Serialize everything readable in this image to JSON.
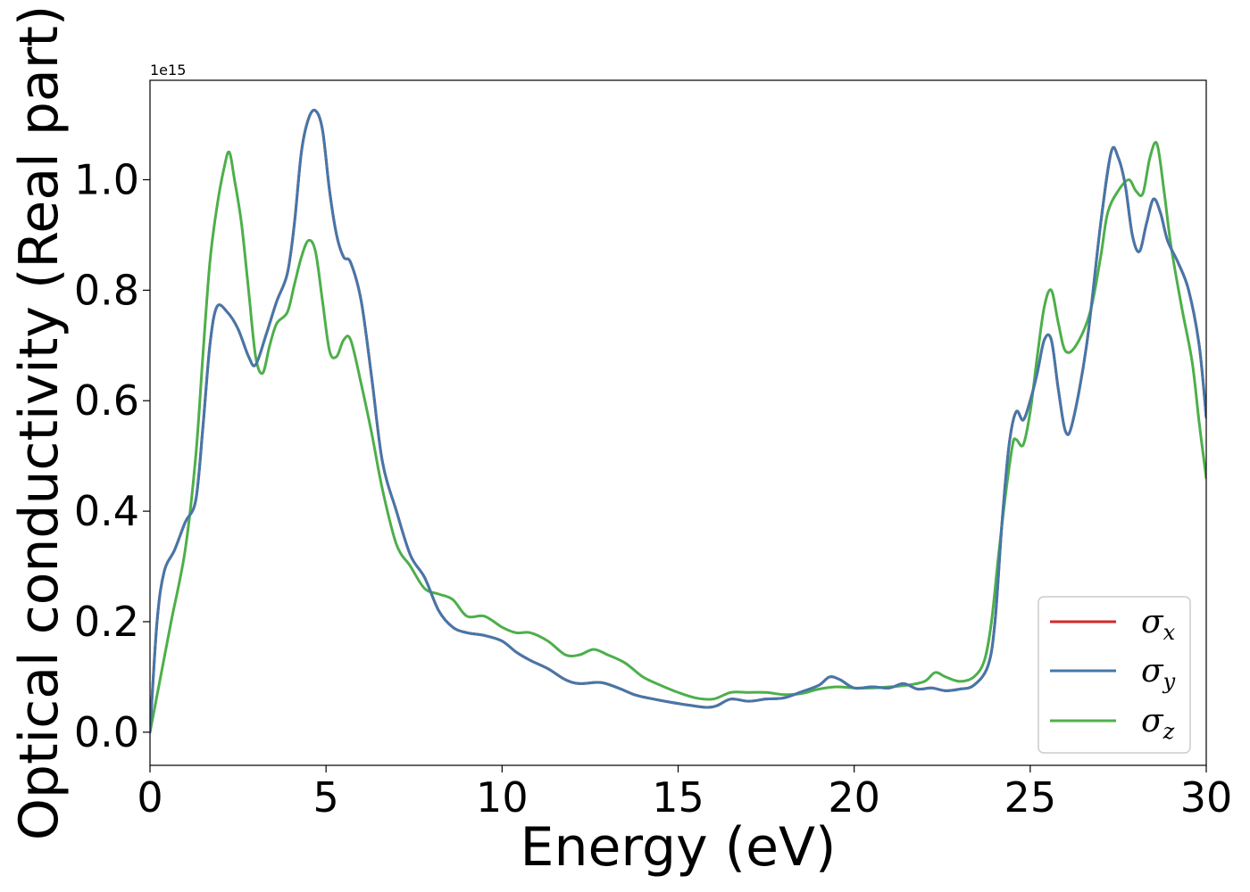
{
  "chart_data": {
    "type": "line",
    "xlabel": "Energy (eV)",
    "ylabel": "Optical conductivity (Real part)",
    "y_offset_label": "1e15",
    "xlim": [
      0,
      30
    ],
    "ylim": [
      -0.06,
      1.18
    ],
    "x_ticks": [
      0,
      5,
      10,
      15,
      20,
      25,
      30
    ],
    "x_tick_labels": [
      "0",
      "5",
      "10",
      "15",
      "20",
      "25",
      "30"
    ],
    "y_ticks": [
      0.0,
      0.2,
      0.4,
      0.6,
      0.8,
      1.0
    ],
    "y_tick_labels": [
      "0.0",
      "0.2",
      "0.4",
      "0.6",
      "0.8",
      "1.0"
    ],
    "grid": false,
    "legend_position": "bottom-right",
    "series": [
      {
        "name": "σx",
        "symbol": "σ",
        "subscript": "x",
        "color": "#d62728",
        "points": [
          [
            0,
            0.0
          ],
          [
            0.2,
            0.2
          ],
          [
            0.4,
            0.29
          ],
          [
            0.7,
            0.33
          ],
          [
            1.0,
            0.38
          ],
          [
            1.3,
            0.42
          ],
          [
            1.5,
            0.55
          ],
          [
            1.7,
            0.7
          ],
          [
            1.9,
            0.77
          ],
          [
            2.2,
            0.76
          ],
          [
            2.5,
            0.73
          ],
          [
            2.8,
            0.68
          ],
          [
            3.0,
            0.665
          ],
          [
            3.3,
            0.72
          ],
          [
            3.6,
            0.78
          ],
          [
            3.9,
            0.83
          ],
          [
            4.1,
            0.92
          ],
          [
            4.3,
            1.05
          ],
          [
            4.5,
            1.11
          ],
          [
            4.7,
            1.125
          ],
          [
            4.9,
            1.09
          ],
          [
            5.1,
            0.98
          ],
          [
            5.3,
            0.9
          ],
          [
            5.5,
            0.86
          ],
          [
            5.7,
            0.85
          ],
          [
            6.0,
            0.78
          ],
          [
            6.3,
            0.64
          ],
          [
            6.6,
            0.49
          ],
          [
            7.0,
            0.4
          ],
          [
            7.4,
            0.32
          ],
          [
            7.8,
            0.28
          ],
          [
            8.2,
            0.22
          ],
          [
            8.6,
            0.19
          ],
          [
            9.0,
            0.18
          ],
          [
            9.5,
            0.175
          ],
          [
            10.0,
            0.165
          ],
          [
            10.4,
            0.145
          ],
          [
            10.8,
            0.13
          ],
          [
            11.3,
            0.115
          ],
          [
            11.8,
            0.095
          ],
          [
            12.2,
            0.088
          ],
          [
            12.8,
            0.09
          ],
          [
            13.3,
            0.08
          ],
          [
            13.8,
            0.067
          ],
          [
            14.3,
            0.06
          ],
          [
            14.8,
            0.054
          ],
          [
            15.3,
            0.049
          ],
          [
            15.8,
            0.045
          ],
          [
            16.1,
            0.048
          ],
          [
            16.5,
            0.06
          ],
          [
            17.0,
            0.056
          ],
          [
            17.5,
            0.06
          ],
          [
            18.0,
            0.062
          ],
          [
            18.5,
            0.073
          ],
          [
            19.0,
            0.085
          ],
          [
            19.3,
            0.1
          ],
          [
            19.6,
            0.095
          ],
          [
            20.0,
            0.08
          ],
          [
            20.5,
            0.082
          ],
          [
            21.0,
            0.08
          ],
          [
            21.4,
            0.088
          ],
          [
            21.8,
            0.078
          ],
          [
            22.2,
            0.08
          ],
          [
            22.6,
            0.075
          ],
          [
            23.0,
            0.078
          ],
          [
            23.4,
            0.085
          ],
          [
            23.8,
            0.12
          ],
          [
            24.0,
            0.2
          ],
          [
            24.2,
            0.38
          ],
          [
            24.4,
            0.52
          ],
          [
            24.6,
            0.58
          ],
          [
            24.8,
            0.565
          ],
          [
            25.0,
            0.6
          ],
          [
            25.2,
            0.65
          ],
          [
            25.4,
            0.71
          ],
          [
            25.6,
            0.71
          ],
          [
            25.8,
            0.62
          ],
          [
            26.0,
            0.545
          ],
          [
            26.2,
            0.56
          ],
          [
            26.6,
            0.7
          ],
          [
            27.0,
            0.92
          ],
          [
            27.3,
            1.05
          ],
          [
            27.5,
            1.04
          ],
          [
            27.7,
            0.99
          ],
          [
            27.9,
            0.9
          ],
          [
            28.1,
            0.87
          ],
          [
            28.3,
            0.92
          ],
          [
            28.5,
            0.965
          ],
          [
            28.7,
            0.94
          ],
          [
            28.9,
            0.89
          ],
          [
            29.2,
            0.85
          ],
          [
            29.5,
            0.8
          ],
          [
            29.8,
            0.7
          ],
          [
            30.0,
            0.57
          ]
        ]
      },
      {
        "name": "σy",
        "symbol": "σ",
        "subscript": "y",
        "color": "#4477aa",
        "points": [
          [
            0,
            0.0
          ],
          [
            0.2,
            0.2
          ],
          [
            0.4,
            0.29
          ],
          [
            0.7,
            0.33
          ],
          [
            1.0,
            0.38
          ],
          [
            1.3,
            0.42
          ],
          [
            1.5,
            0.55
          ],
          [
            1.7,
            0.7
          ],
          [
            1.9,
            0.77
          ],
          [
            2.2,
            0.76
          ],
          [
            2.5,
            0.73
          ],
          [
            2.8,
            0.68
          ],
          [
            3.0,
            0.665
          ],
          [
            3.3,
            0.72
          ],
          [
            3.6,
            0.78
          ],
          [
            3.9,
            0.83
          ],
          [
            4.1,
            0.92
          ],
          [
            4.3,
            1.05
          ],
          [
            4.5,
            1.11
          ],
          [
            4.7,
            1.125
          ],
          [
            4.9,
            1.09
          ],
          [
            5.1,
            0.98
          ],
          [
            5.3,
            0.9
          ],
          [
            5.5,
            0.86
          ],
          [
            5.7,
            0.85
          ],
          [
            6.0,
            0.78
          ],
          [
            6.3,
            0.64
          ],
          [
            6.6,
            0.49
          ],
          [
            7.0,
            0.4
          ],
          [
            7.4,
            0.32
          ],
          [
            7.8,
            0.28
          ],
          [
            8.2,
            0.22
          ],
          [
            8.6,
            0.19
          ],
          [
            9.0,
            0.18
          ],
          [
            9.5,
            0.175
          ],
          [
            10.0,
            0.165
          ],
          [
            10.4,
            0.145
          ],
          [
            10.8,
            0.13
          ],
          [
            11.3,
            0.115
          ],
          [
            11.8,
            0.095
          ],
          [
            12.2,
            0.088
          ],
          [
            12.8,
            0.09
          ],
          [
            13.3,
            0.08
          ],
          [
            13.8,
            0.067
          ],
          [
            14.3,
            0.06
          ],
          [
            14.8,
            0.054
          ],
          [
            15.3,
            0.049
          ],
          [
            15.8,
            0.045
          ],
          [
            16.1,
            0.048
          ],
          [
            16.5,
            0.06
          ],
          [
            17.0,
            0.056
          ],
          [
            17.5,
            0.06
          ],
          [
            18.0,
            0.062
          ],
          [
            18.5,
            0.073
          ],
          [
            19.0,
            0.085
          ],
          [
            19.3,
            0.1
          ],
          [
            19.6,
            0.095
          ],
          [
            20.0,
            0.08
          ],
          [
            20.5,
            0.082
          ],
          [
            21.0,
            0.08
          ],
          [
            21.4,
            0.088
          ],
          [
            21.8,
            0.078
          ],
          [
            22.2,
            0.08
          ],
          [
            22.6,
            0.075
          ],
          [
            23.0,
            0.078
          ],
          [
            23.4,
            0.085
          ],
          [
            23.8,
            0.12
          ],
          [
            24.0,
            0.2
          ],
          [
            24.2,
            0.38
          ],
          [
            24.4,
            0.52
          ],
          [
            24.6,
            0.58
          ],
          [
            24.8,
            0.565
          ],
          [
            25.0,
            0.6
          ],
          [
            25.2,
            0.65
          ],
          [
            25.4,
            0.71
          ],
          [
            25.6,
            0.71
          ],
          [
            25.8,
            0.62
          ],
          [
            26.0,
            0.545
          ],
          [
            26.2,
            0.56
          ],
          [
            26.6,
            0.7
          ],
          [
            27.0,
            0.92
          ],
          [
            27.3,
            1.05
          ],
          [
            27.5,
            1.04
          ],
          [
            27.7,
            0.99
          ],
          [
            27.9,
            0.9
          ],
          [
            28.1,
            0.87
          ],
          [
            28.3,
            0.92
          ],
          [
            28.5,
            0.965
          ],
          [
            28.7,
            0.94
          ],
          [
            28.9,
            0.89
          ],
          [
            29.2,
            0.85
          ],
          [
            29.5,
            0.8
          ],
          [
            29.8,
            0.7
          ],
          [
            30.0,
            0.57
          ]
        ]
      },
      {
        "name": "σz",
        "symbol": "σ",
        "subscript": "z",
        "color": "#4daf4a",
        "points": [
          [
            0,
            0.0
          ],
          [
            0.3,
            0.1
          ],
          [
            0.6,
            0.2
          ],
          [
            1.0,
            0.33
          ],
          [
            1.3,
            0.5
          ],
          [
            1.5,
            0.68
          ],
          [
            1.7,
            0.85
          ],
          [
            1.9,
            0.95
          ],
          [
            2.1,
            1.02
          ],
          [
            2.25,
            1.05
          ],
          [
            2.4,
            1.0
          ],
          [
            2.6,
            0.92
          ],
          [
            2.8,
            0.8
          ],
          [
            3.0,
            0.68
          ],
          [
            3.2,
            0.65
          ],
          [
            3.4,
            0.7
          ],
          [
            3.6,
            0.74
          ],
          [
            3.9,
            0.76
          ],
          [
            4.1,
            0.81
          ],
          [
            4.3,
            0.86
          ],
          [
            4.5,
            0.89
          ],
          [
            4.7,
            0.87
          ],
          [
            4.9,
            0.78
          ],
          [
            5.1,
            0.69
          ],
          [
            5.3,
            0.68
          ],
          [
            5.5,
            0.71
          ],
          [
            5.7,
            0.71
          ],
          [
            6.0,
            0.63
          ],
          [
            6.3,
            0.54
          ],
          [
            6.6,
            0.44
          ],
          [
            7.0,
            0.34
          ],
          [
            7.4,
            0.3
          ],
          [
            7.8,
            0.26
          ],
          [
            8.2,
            0.25
          ],
          [
            8.6,
            0.24
          ],
          [
            9.0,
            0.21
          ],
          [
            9.5,
            0.21
          ],
          [
            10.0,
            0.19
          ],
          [
            10.4,
            0.18
          ],
          [
            10.8,
            0.18
          ],
          [
            11.3,
            0.165
          ],
          [
            11.8,
            0.14
          ],
          [
            12.2,
            0.14
          ],
          [
            12.6,
            0.15
          ],
          [
            13.0,
            0.14
          ],
          [
            13.5,
            0.125
          ],
          [
            14.0,
            0.1
          ],
          [
            14.5,
            0.085
          ],
          [
            15.0,
            0.072
          ],
          [
            15.5,
            0.062
          ],
          [
            16.0,
            0.06
          ],
          [
            16.5,
            0.072
          ],
          [
            17.0,
            0.072
          ],
          [
            17.5,
            0.072
          ],
          [
            18.0,
            0.068
          ],
          [
            18.5,
            0.07
          ],
          [
            19.0,
            0.078
          ],
          [
            19.5,
            0.082
          ],
          [
            20.0,
            0.08
          ],
          [
            20.5,
            0.08
          ],
          [
            21.0,
            0.082
          ],
          [
            21.5,
            0.085
          ],
          [
            22.0,
            0.092
          ],
          [
            22.3,
            0.108
          ],
          [
            22.6,
            0.1
          ],
          [
            23.0,
            0.092
          ],
          [
            23.4,
            0.1
          ],
          [
            23.7,
            0.13
          ],
          [
            23.9,
            0.2
          ],
          [
            24.1,
            0.32
          ],
          [
            24.3,
            0.43
          ],
          [
            24.5,
            0.52
          ],
          [
            24.6,
            0.53
          ],
          [
            24.8,
            0.52
          ],
          [
            25.0,
            0.58
          ],
          [
            25.2,
            0.68
          ],
          [
            25.4,
            0.77
          ],
          [
            25.6,
            0.8
          ],
          [
            25.8,
            0.74
          ],
          [
            26.0,
            0.69
          ],
          [
            26.3,
            0.7
          ],
          [
            26.7,
            0.76
          ],
          [
            27.0,
            0.86
          ],
          [
            27.2,
            0.94
          ],
          [
            27.5,
            0.98
          ],
          [
            27.8,
            1.0
          ],
          [
            28.0,
            0.98
          ],
          [
            28.2,
            0.975
          ],
          [
            28.4,
            1.04
          ],
          [
            28.6,
            1.065
          ],
          [
            28.8,
            0.98
          ],
          [
            29.0,
            0.88
          ],
          [
            29.3,
            0.77
          ],
          [
            29.6,
            0.67
          ],
          [
            29.8,
            0.56
          ],
          [
            30.0,
            0.46
          ]
        ]
      }
    ]
  }
}
